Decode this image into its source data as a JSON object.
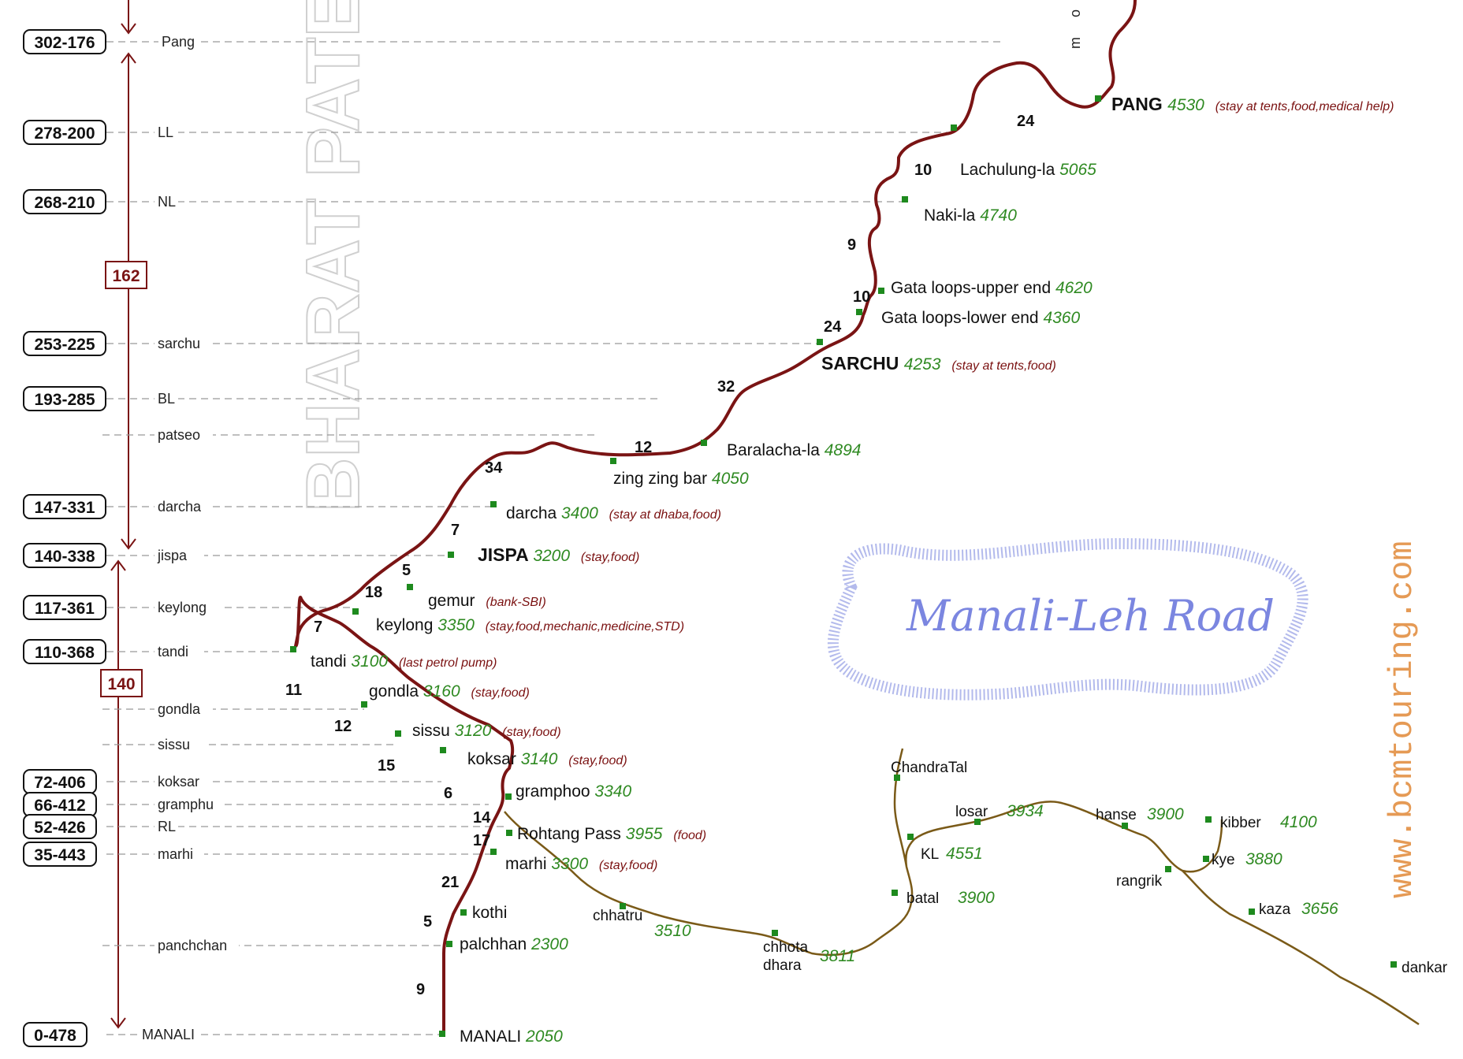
{
  "title": "Manali-Leh Road",
  "watermark": "BHARAT PATEL",
  "website": "www.bcmtouring.com",
  "top_partial_label": "m o r",
  "segment_totals": [
    "162",
    "140"
  ],
  "km_markers": [
    {
      "km": "302-176",
      "stop": "Pang"
    },
    {
      "km": "278-200",
      "stop": "LL"
    },
    {
      "km": "268-210",
      "stop": "NL"
    },
    {
      "km": "253-225",
      "stop": "sarchu"
    },
    {
      "km": "193-285",
      "stop": "BL"
    },
    {
      "km": "",
      "stop": "patseo"
    },
    {
      "km": "147-331",
      "stop": "darcha"
    },
    {
      "km": "140-338",
      "stop": "jispa"
    },
    {
      "km": "117-361",
      "stop": "keylong"
    },
    {
      "km": "110-368",
      "stop": "tandi"
    },
    {
      "km": "",
      "stop": "gondla"
    },
    {
      "km": "",
      "stop": "sissu"
    },
    {
      "km": "72-406",
      "stop": "koksar"
    },
    {
      "km": "66-412",
      "stop": "gramphu"
    },
    {
      "km": "52-426",
      "stop": "RL"
    },
    {
      "km": "35-443",
      "stop": "marhi"
    },
    {
      "km": "",
      "stop": "panchchan"
    },
    {
      "km": "0-478",
      "stop": "MANALI"
    }
  ],
  "places": [
    {
      "name": "PANG",
      "alt": "4530",
      "note": "(stay at tents,food,medical help)"
    },
    {
      "name": "Lachulung-la",
      "alt": "5065",
      "note": ""
    },
    {
      "name": "Naki-la",
      "alt": "4740",
      "note": ""
    },
    {
      "name": "Gata loops-upper end",
      "alt": "4620",
      "note": ""
    },
    {
      "name": "Gata loops-lower end",
      "alt": "4360",
      "note": ""
    },
    {
      "name": "SARCHU",
      "alt": "4253",
      "note": "(stay at tents,food)"
    },
    {
      "name": "Baralacha-la",
      "alt": "4894",
      "note": ""
    },
    {
      "name": "zing zing bar",
      "alt": "4050",
      "note": ""
    },
    {
      "name": "darcha",
      "alt": "3400",
      "note": "(stay at dhaba,food)"
    },
    {
      "name": "JISPA",
      "alt": "3200",
      "note": "(stay,food)"
    },
    {
      "name": "gemur",
      "alt": "",
      "note": "(bank-SBI)"
    },
    {
      "name": "keylong",
      "alt": "3350",
      "note": "(stay,food,mechanic,medicine,STD)"
    },
    {
      "name": "tandi",
      "alt": "3100",
      "note": "(last petrol pump)"
    },
    {
      "name": "gondla",
      "alt": "3160",
      "note": "(stay,food)"
    },
    {
      "name": "sissu",
      "alt": "3120",
      "note": "(stay,food)"
    },
    {
      "name": "koksar",
      "alt": "3140",
      "note": "(stay,food)"
    },
    {
      "name": "gramphoo",
      "alt": "3340",
      "note": ""
    },
    {
      "name": "Rohtang Pass",
      "alt": "3955",
      "note": "(food)"
    },
    {
      "name": "marhi",
      "alt": "3300",
      "note": "(stay,food)"
    },
    {
      "name": "kothi",
      "alt": "",
      "note": ""
    },
    {
      "name": "palchhan",
      "alt": "2300",
      "note": ""
    },
    {
      "name": "MANALI",
      "alt": "2050",
      "note": ""
    }
  ],
  "spiti_places": [
    {
      "name": "ChandraTal",
      "alt": ""
    },
    {
      "name": "losar",
      "alt": "3934"
    },
    {
      "name": "hanse",
      "alt": "3900"
    },
    {
      "name": "kibber",
      "alt": "4100"
    },
    {
      "name": "KL",
      "alt": "4551"
    },
    {
      "name": "kye",
      "alt": "3880"
    },
    {
      "name": "rangrik",
      "alt": ""
    },
    {
      "name": "batal",
      "alt": "3900"
    },
    {
      "name": "kaza",
      "alt": "3656"
    },
    {
      "name": "chhatru",
      "alt": "3510"
    },
    {
      "name": "chhota",
      "alt": ""
    },
    {
      "name": "dhara",
      "alt": "3811"
    },
    {
      "name": "dankar",
      "alt": ""
    }
  ],
  "segment_distances": [
    "24",
    "10",
    "9",
    "10",
    "24",
    "32",
    "12",
    "34",
    "7",
    "5",
    "18",
    "7",
    "11",
    "12",
    "15",
    "6",
    "14",
    "17",
    "21",
    "5",
    "9"
  ],
  "colors": {
    "route": "#7a1414",
    "spiti_route": "#7a5a18",
    "marker": "#1e8a1e",
    "altitude": "#2f8a22",
    "note": "#7a1010",
    "title": "#7b86e0",
    "website": "#e59a55"
  }
}
